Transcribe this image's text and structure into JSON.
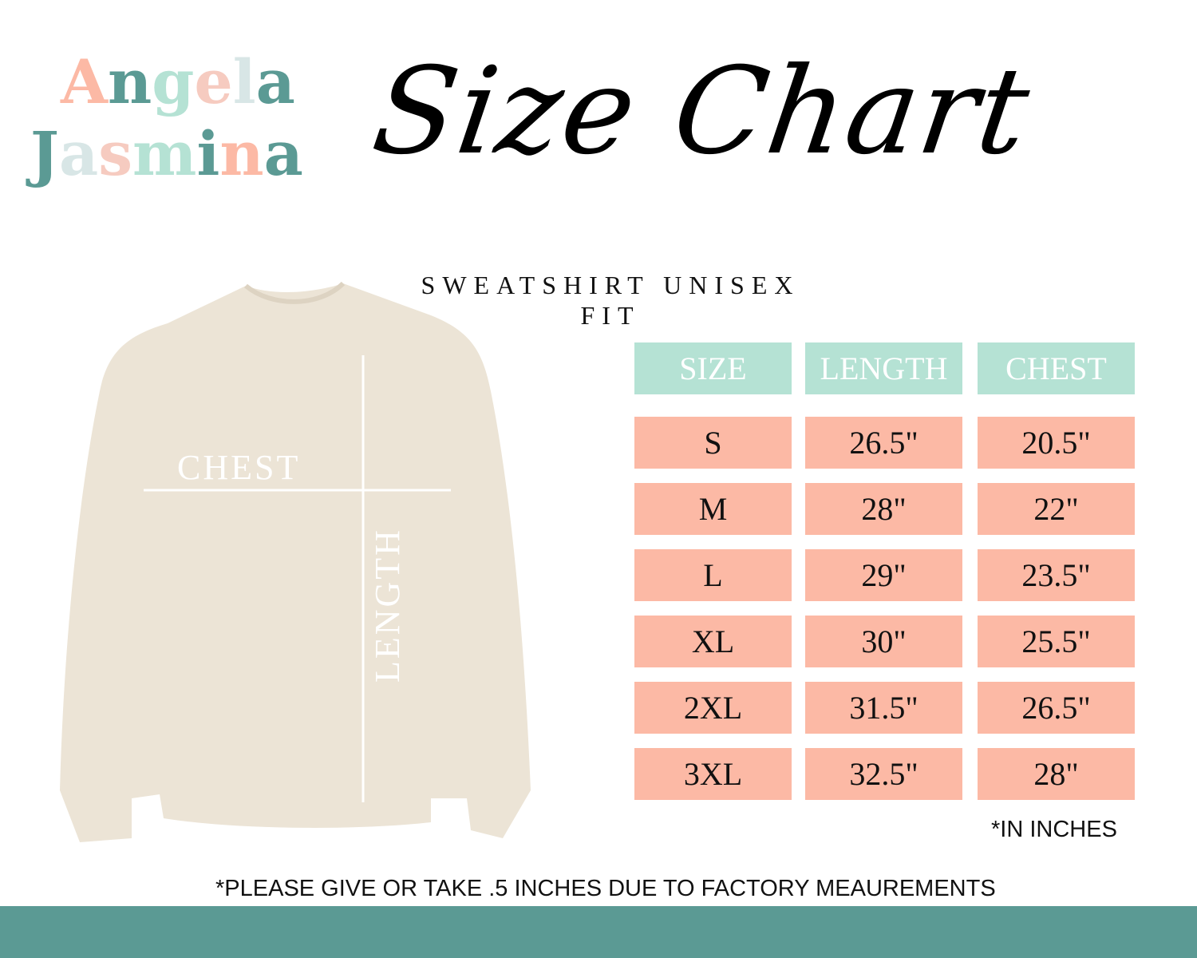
{
  "brand": {
    "line1": [
      {
        "ch": "A",
        "color": "#fcb9a5"
      },
      {
        "ch": "n",
        "color": "#5b9a94"
      },
      {
        "ch": "g",
        "color": "#b5e2d4"
      },
      {
        "ch": "e",
        "color": "#f6cbc0"
      },
      {
        "ch": "l",
        "color": "#d8e6e6"
      },
      {
        "ch": "a",
        "color": "#5b9a94"
      }
    ],
    "line2": [
      {
        "ch": "J",
        "color": "#5b9a94"
      },
      {
        "ch": "a",
        "color": "#d8e6e6"
      },
      {
        "ch": "s",
        "color": "#f6cbc0"
      },
      {
        "ch": "m",
        "color": "#b5e2d4"
      },
      {
        "ch": "i",
        "color": "#5b9a94"
      },
      {
        "ch": "n",
        "color": "#fcb9a5"
      },
      {
        "ch": "a",
        "color": "#5b9a94"
      }
    ],
    "text": "Angela Jasmina"
  },
  "title": "Size Chart",
  "subtitle": "SWEATSHIRT UNISEX FIT",
  "diagram": {
    "chest_label": "CHEST",
    "length_label": "LENGTH"
  },
  "table": {
    "headers": [
      "SIZE",
      "LENGTH",
      "CHEST"
    ],
    "rows": [
      [
        "S",
        "26.5\"",
        "20.5\""
      ],
      [
        "M",
        "28\"",
        "22\""
      ],
      [
        "L",
        "29\"",
        "23.5\""
      ],
      [
        "XL",
        "30\"",
        "25.5\""
      ],
      [
        "2XL",
        "31.5\"",
        "26.5\""
      ],
      [
        "3XL",
        "32.5\"",
        "28\""
      ]
    ]
  },
  "units_note": "*IN INCHES",
  "disclaimer": "*PLEASE GIVE OR TAKE .5 INCHES DUE TO FACTORY MEAUREMENTS",
  "colors": {
    "header": "#b5e2d4",
    "row": "#fcb9a5",
    "footer": "#5b9a94",
    "shirt": "#ece4d6"
  }
}
